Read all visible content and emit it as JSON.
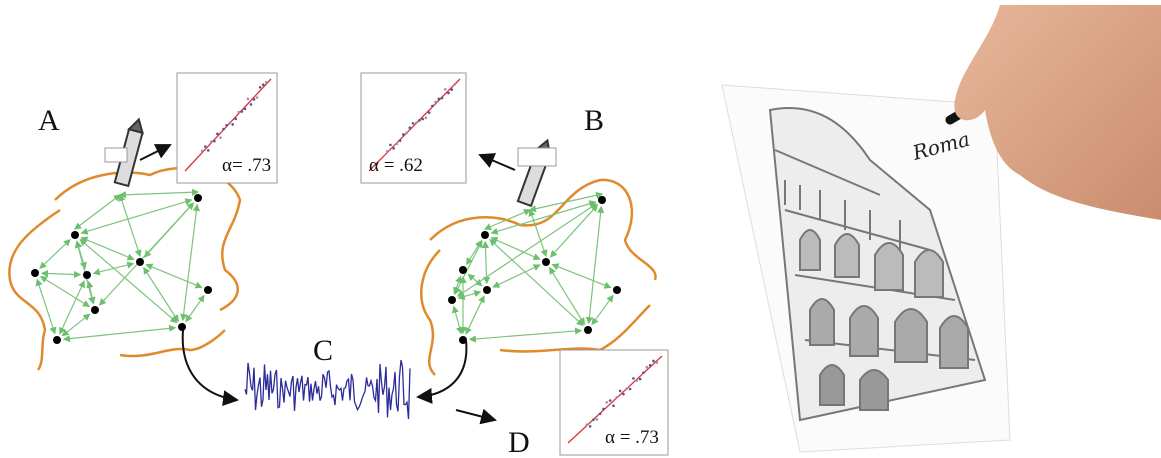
{
  "labels": {
    "a": "A",
    "b": "B",
    "c": "C",
    "d": "D"
  },
  "plots": [
    {
      "alpha": "α= .73"
    },
    {
      "alpha": "α = .62"
    },
    {
      "alpha": "α = .73"
    }
  ],
  "signature": "Roma"
}
